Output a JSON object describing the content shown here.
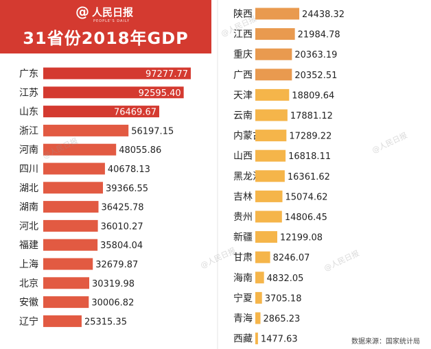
{
  "header": {
    "logo_at": "@",
    "logo_name": "人民日报",
    "logo_sub": "PEOPLE'S DAILY",
    "title": "31省份2018年GDP"
  },
  "watermark": "@人民日报",
  "source_note": "数据来源：国家统计局",
  "colors": {
    "header_bg": "#d43a30",
    "top_tier": "#d43a30",
    "second_tier": "#e25a42",
    "third_tier": "#e99a4f",
    "fourth_tier": "#f5b54a"
  },
  "chart_data": {
    "type": "bar",
    "orientation": "horizontal",
    "title": "31省份2018年GDP",
    "categories": [
      "广东",
      "江苏",
      "山东",
      "浙江",
      "河南",
      "四川",
      "湖北",
      "湖南",
      "河北",
      "福建",
      "上海",
      "北京",
      "安徽",
      "辽宁",
      "陕西",
      "江西",
      "重庆",
      "广西",
      "天津",
      "云南",
      "内蒙古",
      "山西",
      "黑龙江",
      "吉林",
      "贵州",
      "新疆",
      "甘肃",
      "海南",
      "宁夏",
      "青海",
      "西藏"
    ],
    "values": [
      97277.77,
      92595.4,
      76469.67,
      56197.15,
      48055.86,
      40678.13,
      39366.55,
      36425.78,
      36010.27,
      35804.04,
      32679.87,
      30319.98,
      30006.82,
      25315.35,
      24438.32,
      21984.78,
      20363.19,
      20352.51,
      18809.64,
      17881.12,
      17289.22,
      16818.11,
      16361.62,
      15074.62,
      14806.45,
      12199.08,
      8246.07,
      4832.05,
      3705.18,
      2865.23,
      1477.63
    ],
    "labels": [
      "97277.77",
      "92595.40",
      "76469.67",
      "56197.15",
      "48055.86",
      "40678.13",
      "39366.55",
      "36425.78",
      "36010.27",
      "35804.04",
      "32679.87",
      "30319.98",
      "30006.82",
      "25315.35",
      "24438.32",
      "21984.78",
      "20363.19",
      "20352.51",
      "18809.64",
      "17881.12",
      "17289.22",
      "16818.11",
      "16361.62",
      "15074.62",
      "14806.45",
      "12199.08",
      "8246.07",
      "4832.05",
      "3705.18",
      "2865.23",
      "1477.63"
    ],
    "grid": false,
    "legend": "none"
  }
}
